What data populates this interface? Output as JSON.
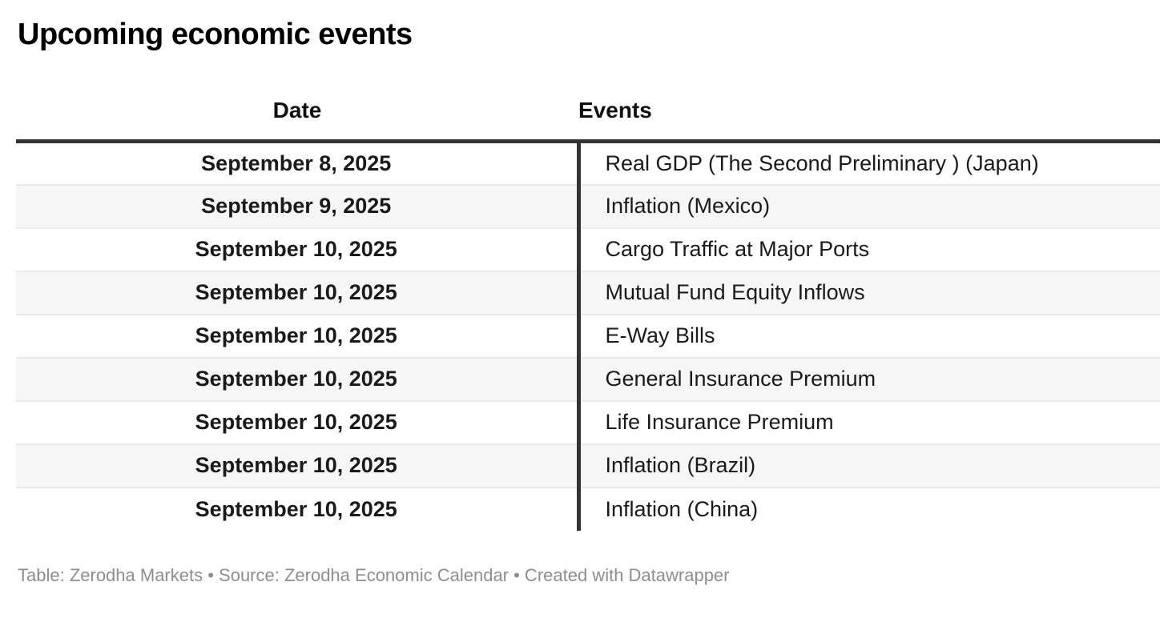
{
  "title": "Upcoming economic events",
  "chart_data": {
    "type": "table",
    "title": "Upcoming economic events",
    "columns": [
      "Date",
      "Events"
    ],
    "rows": [
      [
        "September 8, 2025",
        "Real GDP (The Second Preliminary ) (Japan)"
      ],
      [
        "September 9, 2025",
        "Inflation (Mexico)"
      ],
      [
        "September 10, 2025",
        "Cargo Traffic at Major Ports"
      ],
      [
        "September 10, 2025",
        "Mutual Fund Equity Inflows"
      ],
      [
        "September 10, 2025",
        "E-Way Bills"
      ],
      [
        "September 10, 2025",
        "General Insurance Premium"
      ],
      [
        "September 10, 2025",
        "Life Insurance Premium"
      ],
      [
        "September 10, 2025",
        "Inflation (Brazil)"
      ],
      [
        "September 10, 2025",
        "Inflation (China)"
      ]
    ],
    "layout": {
      "striped_rows": true,
      "date_column_align": "center",
      "events_column_align": "left"
    }
  },
  "footer": {
    "text": "Table: Zerodha Markets • Source: Zerodha Economic Calendar • Created with Datawrapper"
  },
  "colors": {
    "header_rule": "#333333",
    "divider": "#333333",
    "stripe": "#f6f6f6",
    "row_border": "#ebebeb",
    "text": "#1a1a1a",
    "footer_text": "#8e8e8e",
    "bg": "#ffffff"
  }
}
